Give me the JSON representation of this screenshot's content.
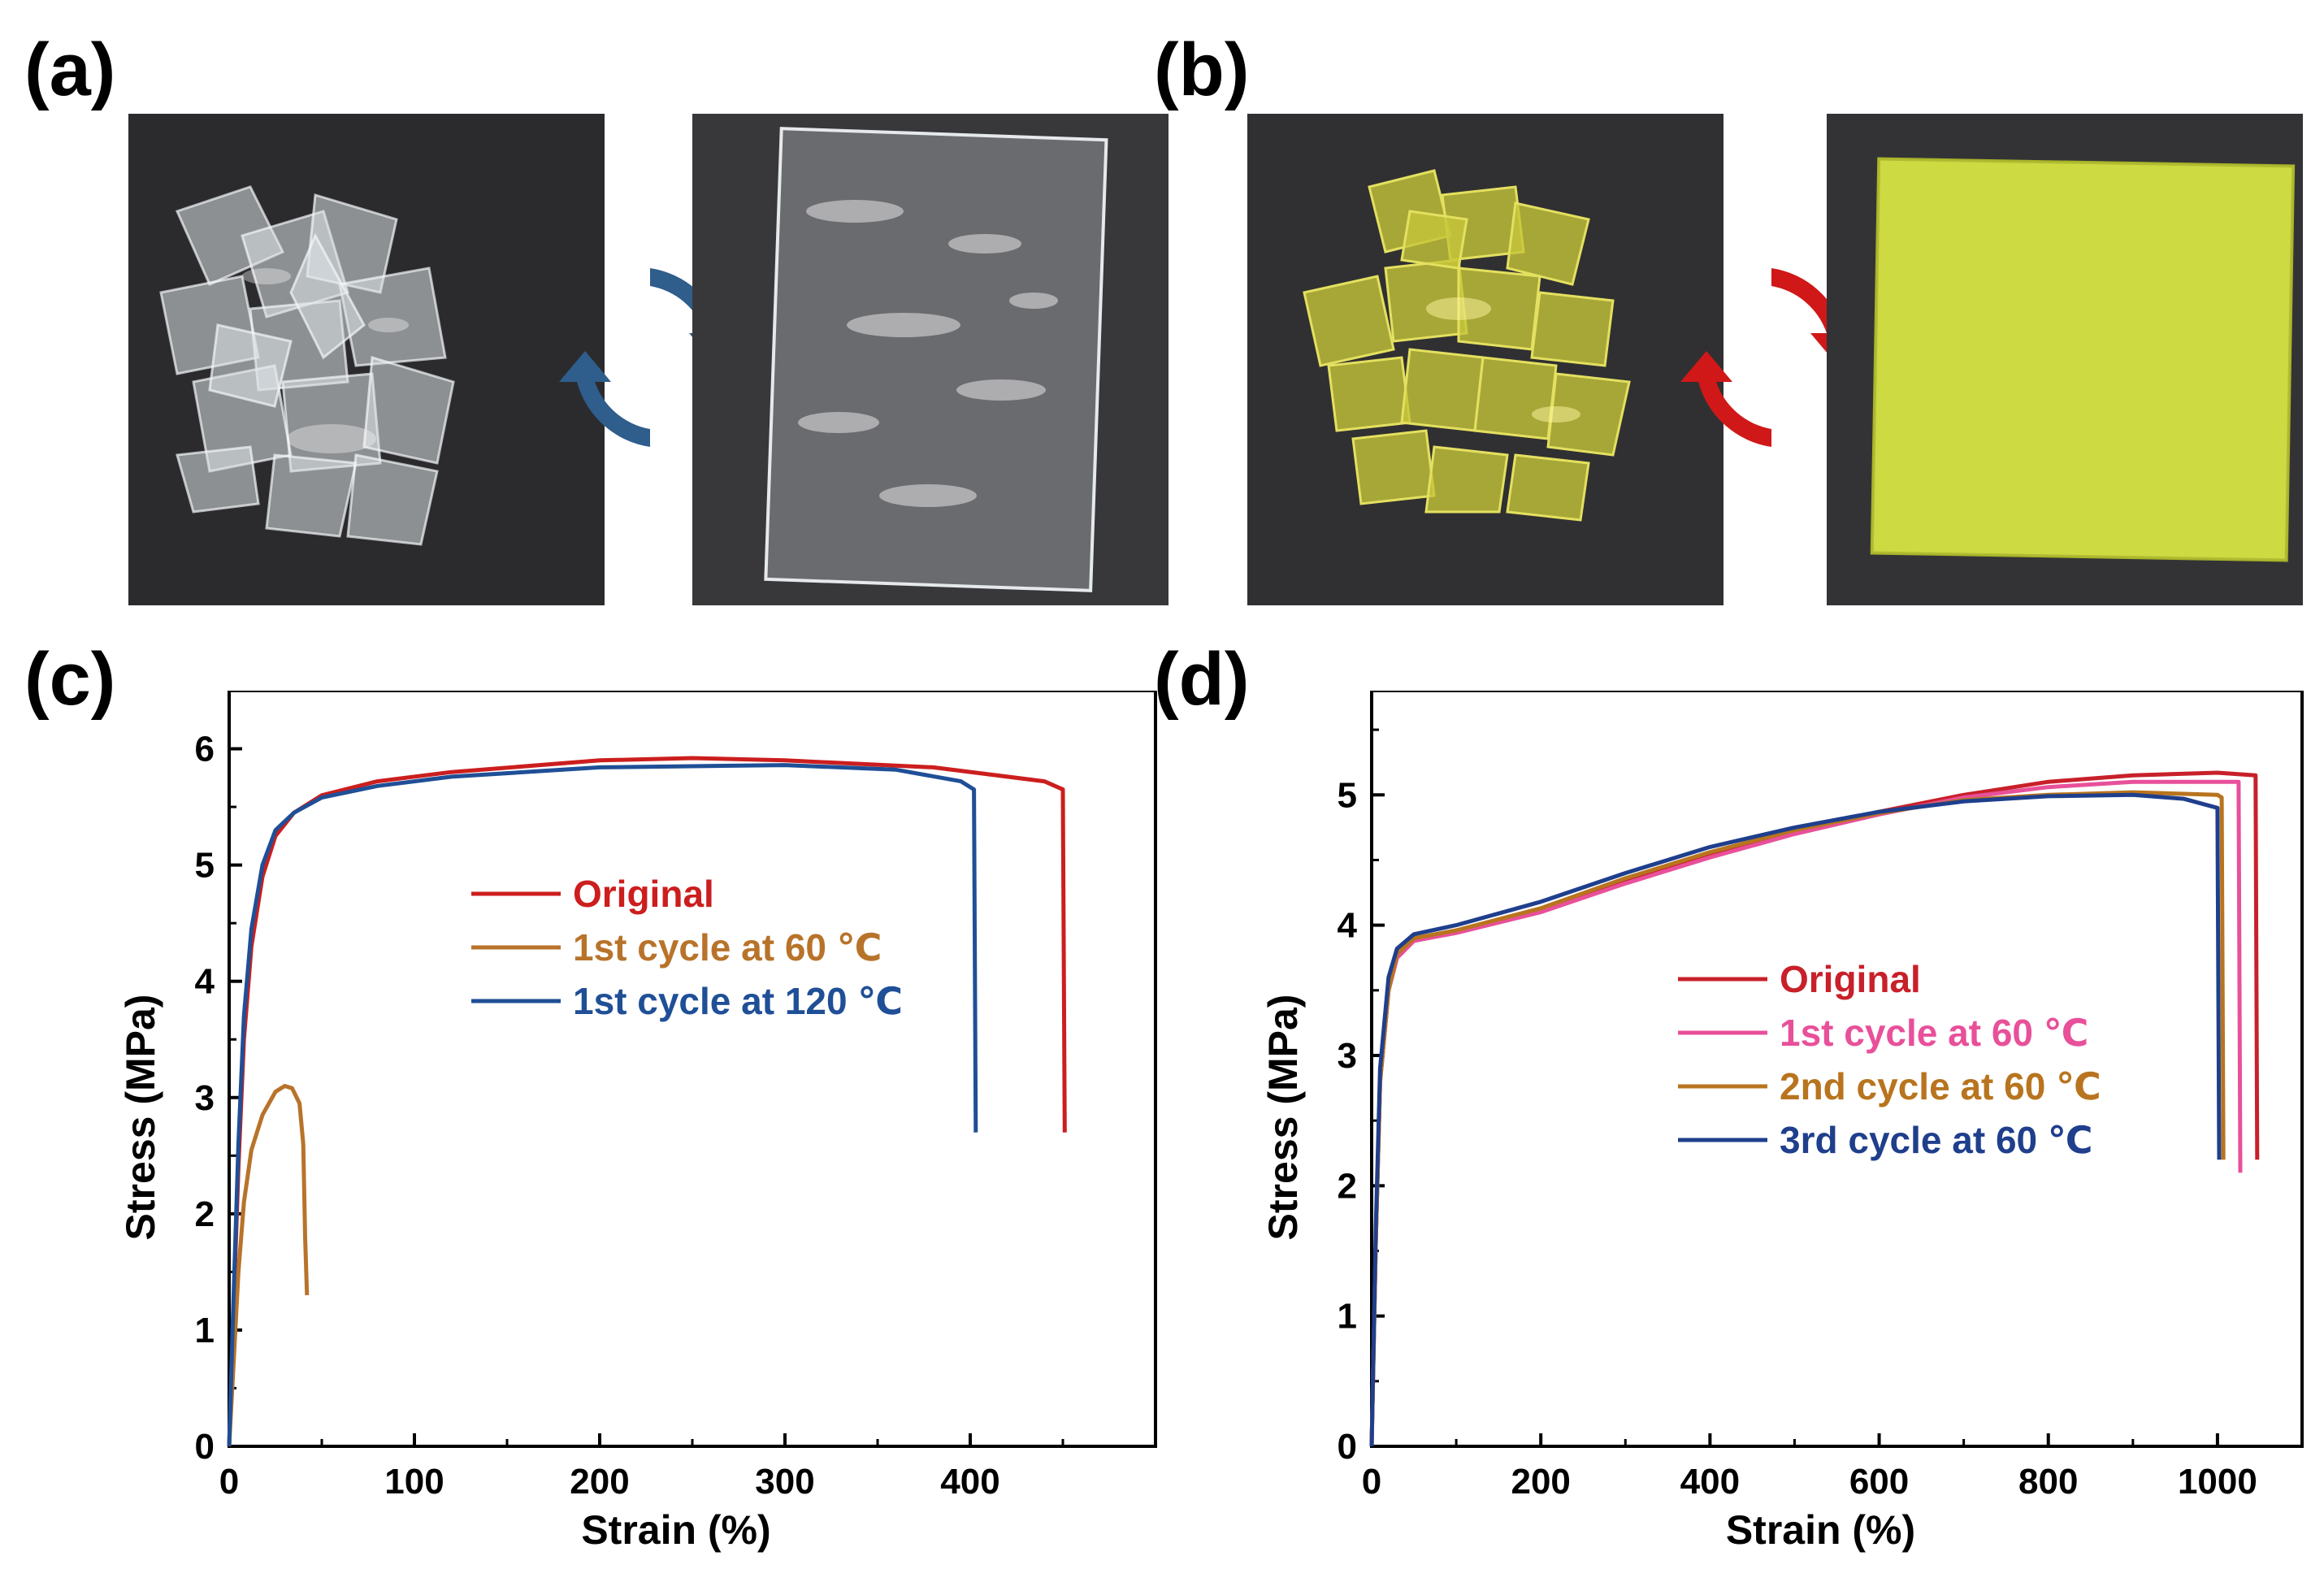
{
  "panels": {
    "a": "(a)",
    "b": "(b)",
    "c": "(c)",
    "d": "(d)"
  },
  "colors": {
    "photo_background": "#2b2b2e",
    "arrow_blue": "#2f5d8c",
    "arrow_red": "#d01818",
    "film_yellow": "#c9d63a"
  },
  "chart_data": [
    {
      "panel": "c",
      "type": "line",
      "xlabel": "Strain (%)",
      "ylabel": "Stress (MPa)",
      "xlim": [
        0,
        500
      ],
      "ylim": [
        0,
        6.5
      ],
      "xticks": [
        0,
        100,
        200,
        300,
        400
      ],
      "yticks": [
        0,
        1,
        2,
        3,
        4,
        5,
        6
      ],
      "grid": false,
      "legend_position": "center",
      "series": [
        {
          "name": "Original",
          "color": "#cc1e1e",
          "points": [
            [
              0,
              0
            ],
            [
              2,
              1.0
            ],
            [
              5,
              2.4
            ],
            [
              8,
              3.5
            ],
            [
              12,
              4.3
            ],
            [
              18,
              4.9
            ],
            [
              25,
              5.25
            ],
            [
              35,
              5.45
            ],
            [
              50,
              5.6
            ],
            [
              80,
              5.72
            ],
            [
              120,
              5.8
            ],
            [
              200,
              5.9
            ],
            [
              250,
              5.92
            ],
            [
              300,
              5.9
            ],
            [
              380,
              5.84
            ],
            [
              440,
              5.72
            ],
            [
              450,
              5.65
            ],
            [
              451,
              2.7
            ]
          ]
        },
        {
          "name": "1st cycle at 60 ℃",
          "color": "#b8732a",
          "points": [
            [
              0,
              0
            ],
            [
              2,
              0.6
            ],
            [
              5,
              1.5
            ],
            [
              8,
              2.1
            ],
            [
              12,
              2.55
            ],
            [
              18,
              2.85
            ],
            [
              25,
              3.05
            ],
            [
              30,
              3.1
            ],
            [
              34,
              3.08
            ],
            [
              38,
              2.95
            ],
            [
              40,
              2.6
            ],
            [
              41,
              1.8
            ],
            [
              42,
              1.3
            ]
          ]
        },
        {
          "name": "1st cycle at 120 ℃",
          "color": "#1f4f96",
          "points": [
            [
              0,
              0
            ],
            [
              2,
              1.1
            ],
            [
              5,
              2.6
            ],
            [
              8,
              3.7
            ],
            [
              12,
              4.45
            ],
            [
              18,
              5.0
            ],
            [
              25,
              5.3
            ],
            [
              35,
              5.45
            ],
            [
              50,
              5.58
            ],
            [
              80,
              5.68
            ],
            [
              120,
              5.76
            ],
            [
              200,
              5.84
            ],
            [
              300,
              5.86
            ],
            [
              360,
              5.82
            ],
            [
              395,
              5.72
            ],
            [
              402,
              5.65
            ],
            [
              403,
              2.7
            ]
          ]
        }
      ]
    },
    {
      "panel": "d",
      "type": "line",
      "xlabel": "Strain (%)",
      "ylabel": "Stress (MPa)",
      "xlim": [
        0,
        1100
      ],
      "ylim": [
        0,
        5.8
      ],
      "xticks": [
        0,
        200,
        400,
        600,
        800,
        1000
      ],
      "yticks": [
        0,
        1,
        2,
        3,
        4,
        5
      ],
      "grid": false,
      "legend_position": "center",
      "series": [
        {
          "name": "Original",
          "color": "#c8202a",
          "points": [
            [
              0,
              0
            ],
            [
              5,
              1.6
            ],
            [
              10,
              2.8
            ],
            [
              20,
              3.5
            ],
            [
              30,
              3.75
            ],
            [
              50,
              3.88
            ],
            [
              100,
              3.95
            ],
            [
              200,
              4.12
            ],
            [
              300,
              4.35
            ],
            [
              400,
              4.55
            ],
            [
              500,
              4.72
            ],
            [
              600,
              4.87
            ],
            [
              700,
              5.0
            ],
            [
              800,
              5.1
            ],
            [
              900,
              5.15
            ],
            [
              1000,
              5.17
            ],
            [
              1045,
              5.15
            ],
            [
              1047,
              2.2
            ]
          ]
        },
        {
          "name": "1st cycle at 60 ℃",
          "color": "#e8509a",
          "points": [
            [
              0,
              0
            ],
            [
              5,
              1.6
            ],
            [
              10,
              2.8
            ],
            [
              20,
              3.5
            ],
            [
              30,
              3.75
            ],
            [
              50,
              3.88
            ],
            [
              100,
              3.94
            ],
            [
              200,
              4.1
            ],
            [
              300,
              4.32
            ],
            [
              400,
              4.52
            ],
            [
              500,
              4.7
            ],
            [
              600,
              4.85
            ],
            [
              700,
              4.98
            ],
            [
              800,
              5.06
            ],
            [
              900,
              5.1
            ],
            [
              1000,
              5.1
            ],
            [
              1025,
              5.1
            ],
            [
              1027,
              2.1
            ]
          ]
        },
        {
          "name": "2nd cycle at 60 ℃",
          "color": "#b8741e",
          "points": [
            [
              0,
              0
            ],
            [
              5,
              1.6
            ],
            [
              10,
              2.8
            ],
            [
              20,
              3.5
            ],
            [
              30,
              3.78
            ],
            [
              50,
              3.9
            ],
            [
              100,
              3.96
            ],
            [
              200,
              4.13
            ],
            [
              300,
              4.36
            ],
            [
              400,
              4.56
            ],
            [
              500,
              4.73
            ],
            [
              600,
              4.86
            ],
            [
              700,
              4.96
            ],
            [
              800,
              5.0
            ],
            [
              900,
              5.02
            ],
            [
              1000,
              5.0
            ],
            [
              1005,
              4.98
            ],
            [
              1007,
              2.2
            ]
          ]
        },
        {
          "name": "3rd cycle at 60 ℃",
          "color": "#1f3f8c",
          "points": [
            [
              0,
              0
            ],
            [
              5,
              1.7
            ],
            [
              10,
              2.9
            ],
            [
              20,
              3.6
            ],
            [
              30,
              3.82
            ],
            [
              50,
              3.93
            ],
            [
              100,
              4.0
            ],
            [
              200,
              4.18
            ],
            [
              300,
              4.4
            ],
            [
              400,
              4.6
            ],
            [
              500,
              4.75
            ],
            [
              600,
              4.87
            ],
            [
              700,
              4.95
            ],
            [
              800,
              4.99
            ],
            [
              900,
              5.0
            ],
            [
              960,
              4.97
            ],
            [
              1000,
              4.9
            ],
            [
              1002,
              2.2
            ]
          ]
        }
      ]
    }
  ]
}
